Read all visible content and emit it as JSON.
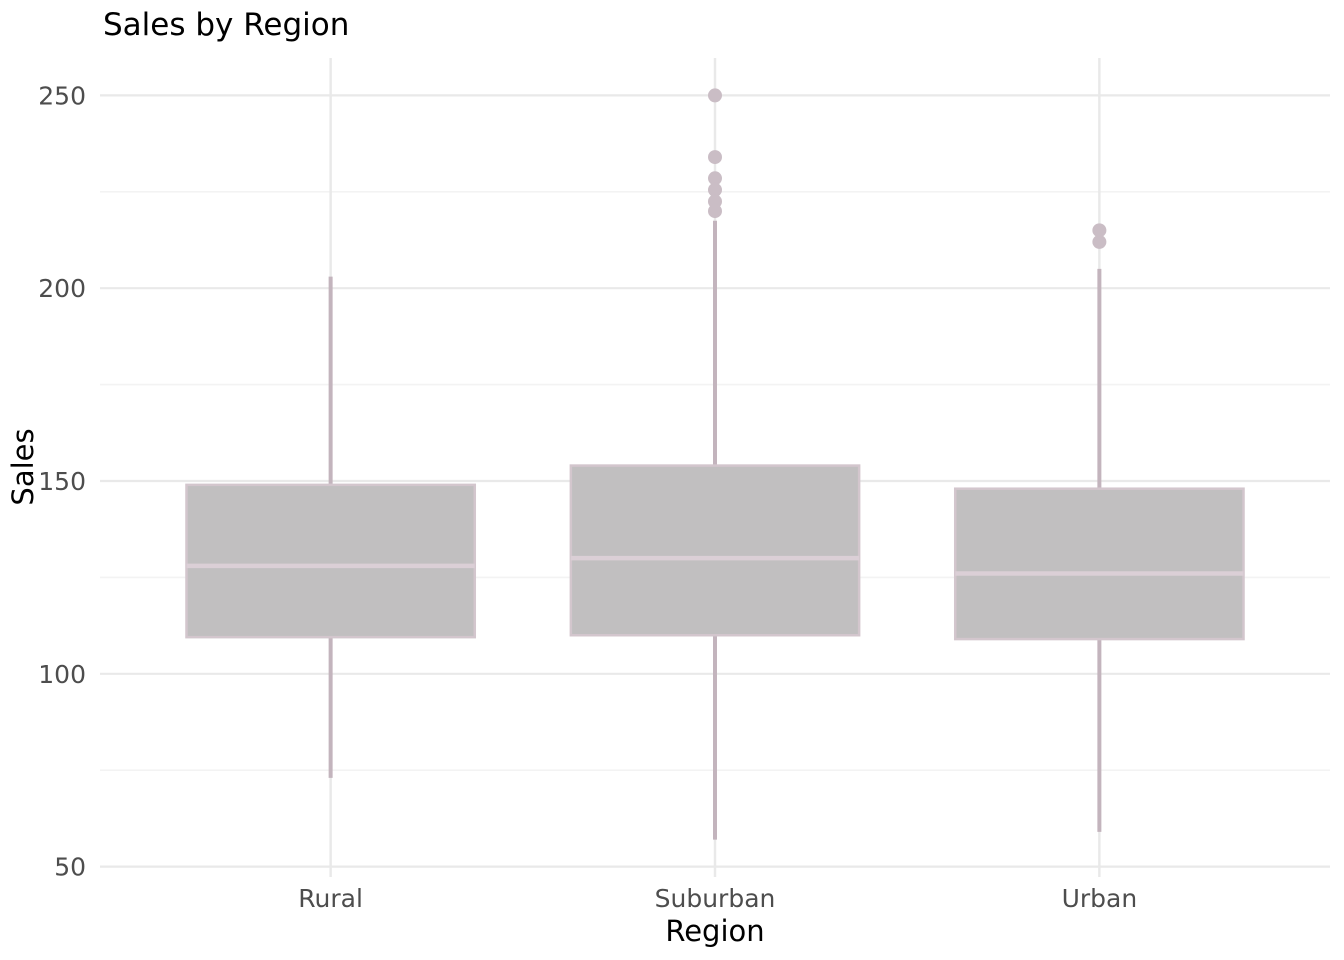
{
  "chart_data": {
    "type": "boxplot",
    "title": "Sales by Region",
    "xlabel": "Region",
    "ylabel": "Sales",
    "categories": [
      "Rural",
      "Suburban",
      "Urban"
    ],
    "y_ticks": [
      50,
      100,
      150,
      200,
      250
    ],
    "y_minor_ticks": [
      75,
      125,
      175,
      225
    ],
    "ylim": [
      47.3,
      259.7
    ],
    "grid": "horizontal major+minor gridlines, vertical major gridline at each category",
    "legend": "none",
    "series": [
      {
        "name": "Rural",
        "whisker_low": 73,
        "q1": 109.5,
        "median": 128,
        "q3": 149,
        "whisker_high": 203,
        "outliers": []
      },
      {
        "name": "Suburban",
        "whisker_low": 57,
        "q1": 110,
        "median": 130,
        "q3": 154,
        "whisker_high": 217.5,
        "outliers": [
          250,
          234,
          228.5,
          225.5,
          222.5,
          220
        ]
      },
      {
        "name": "Urban",
        "whisker_low": 59,
        "q1": 109,
        "median": 126,
        "q3": 148,
        "whisker_high": 205,
        "outliers": [
          215,
          212
        ]
      }
    ],
    "colors": {
      "background": "#ffffff",
      "grid_major": "#e9e9e9",
      "grid_minor": "#f3f3f3",
      "box_fill": "#c1bfc0",
      "box_border": "#d3c6cd",
      "median_line": "#dbcfd6",
      "whisker": "#c3b4bd",
      "outlier": "#cabdc5",
      "tick_label": "#4d4d4d",
      "title": "#000000"
    }
  }
}
